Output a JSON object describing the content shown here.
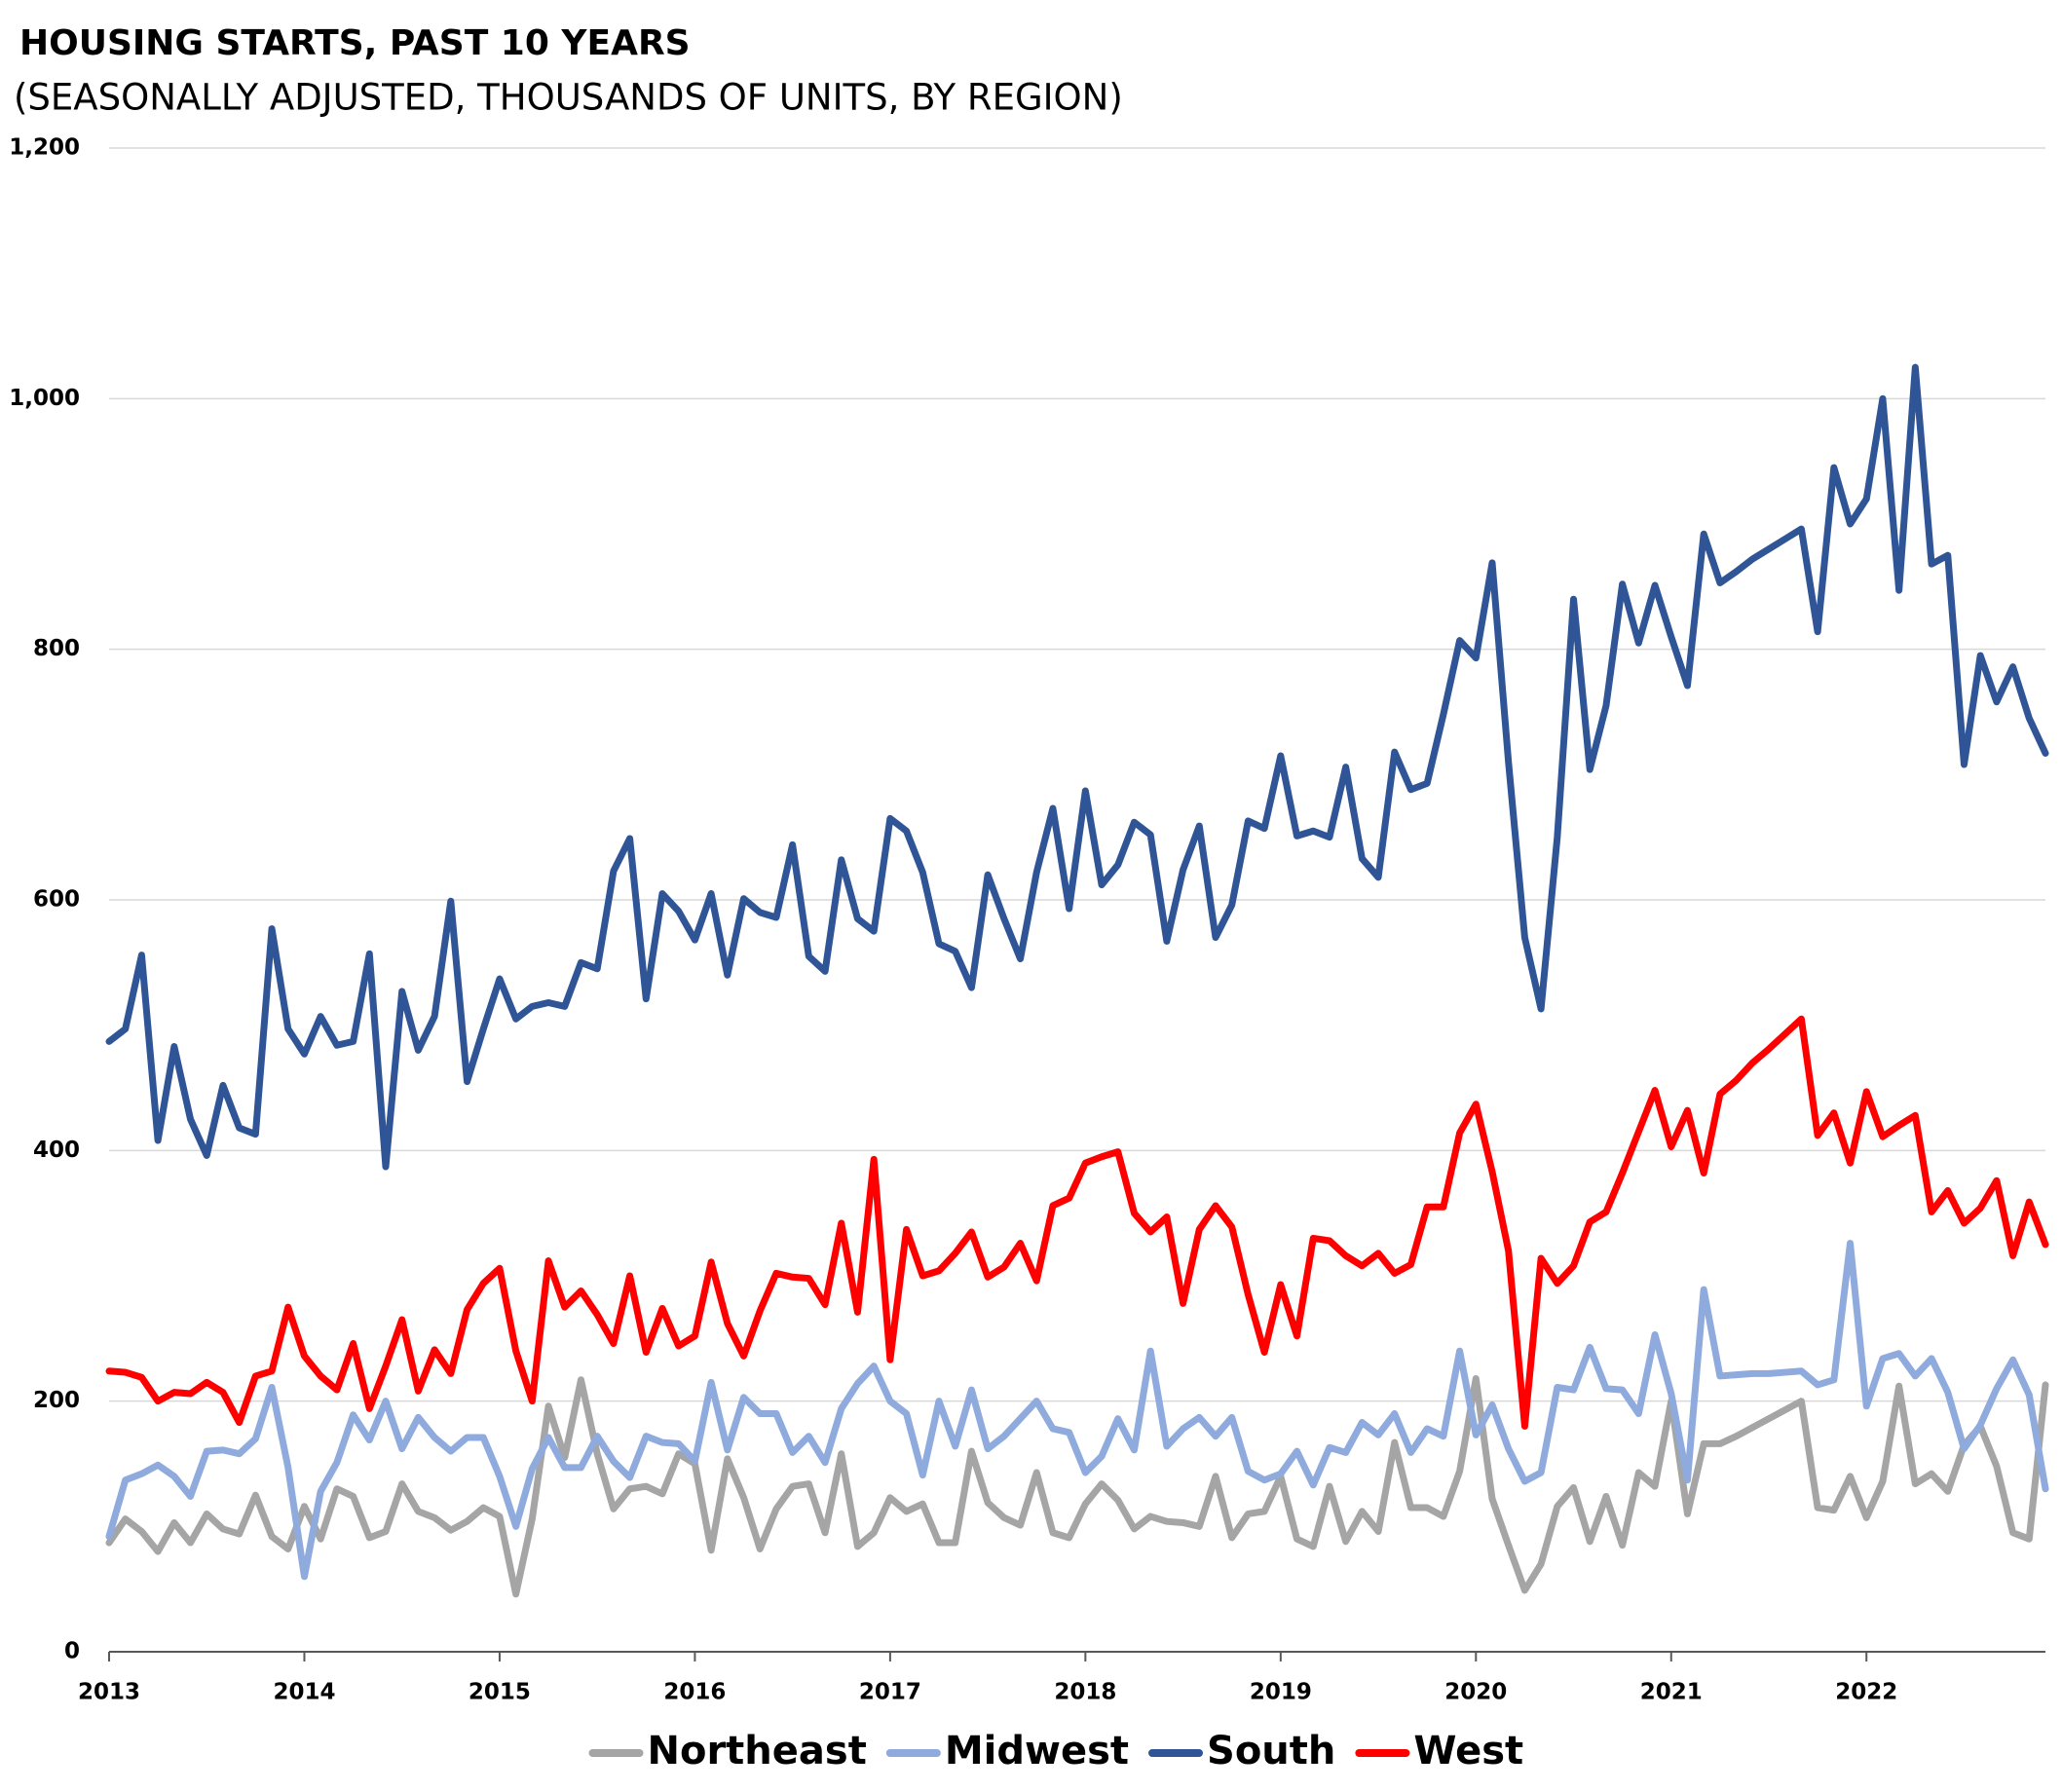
{
  "chart_data": {
    "type": "line",
    "title": "HOUSING STARTS, PAST 10 YEARS",
    "subtitle": "(SEASONALLY ADJUSTED, THOUSANDS OF UNITS, BY REGION)",
    "categories": [
      "2013",
      null,
      null,
      null,
      null,
      null,
      null,
      null,
      null,
      null,
      null,
      null,
      "2014",
      null,
      null,
      null,
      null,
      null,
      null,
      null,
      null,
      null,
      null,
      null,
      "2015",
      null,
      null,
      null,
      null,
      null,
      null,
      null,
      null,
      null,
      null,
      null,
      "2016",
      null,
      null,
      null,
      null,
      null,
      null,
      null,
      null,
      null,
      null,
      null,
      "2017",
      null,
      null,
      null,
      null,
      null,
      null,
      null,
      null,
      null,
      null,
      null,
      "2018",
      null,
      null,
      null,
      null,
      null,
      null,
      null,
      null,
      null,
      null,
      null,
      "2019",
      null,
      null,
      null,
      null,
      null,
      null,
      null,
      null,
      null,
      null,
      null,
      "2020",
      null,
      null,
      null,
      null,
      null,
      null,
      null,
      null,
      null,
      null,
      null,
      "2021",
      null,
      null,
      null,
      null,
      null,
      null,
      null,
      null,
      null,
      null,
      null,
      "2022",
      null,
      null,
      null,
      null,
      null,
      null,
      null,
      null,
      null,
      null,
      null
    ],
    "series": [
      {
        "name": "Northeast",
        "color": "#a5a5a5",
        "values": [
          87,
          106,
          96,
          80,
          103,
          87,
          110,
          98,
          94,
          125,
          92,
          82,
          116,
          90,
          130,
          124,
          91,
          96,
          134,
          112,
          107,
          97,
          104,
          115,
          108,
          46,
          106,
          196,
          155,
          217,
          158,
          114,
          130,
          132,
          126,
          158,
          150,
          81,
          154,
          123,
          82,
          114,
          132,
          134,
          95,
          158,
          84,
          95,
          123,
          112,
          118,
          87,
          87,
          160,
          119,
          107,
          101,
          143,
          95,
          91,
          118,
          134,
          121,
          98,
          108,
          104,
          103,
          100,
          140,
          91,
          110,
          112,
          140,
          90,
          84,
          132,
          88,
          112,
          96,
          167,
          115,
          115,
          108,
          144,
          218,
          122,
          85,
          49,
          70,
          116,
          131,
          88,
          124,
          85,
          143,
          132,
          200,
          110,
          166,
          166,
          172,
          179,
          186,
          193,
          200,
          115,
          113,
          140,
          107,
          136,
          212,
          134,
          142,
          128,
          165,
          180,
          148,
          95,
          90,
          213
        ]
      },
      {
        "name": "Midwest",
        "color": "#8faadc",
        "values": [
          92,
          137,
          142,
          149,
          140,
          124,
          160,
          161,
          158,
          170,
          211,
          147,
          60,
          128,
          151,
          189,
          169,
          200,
          162,
          187,
          171,
          160,
          171,
          171,
          140,
          100,
          146,
          171,
          147,
          147,
          172,
          152,
          139,
          172,
          167,
          166,
          152,
          215,
          161,
          203,
          190,
          190,
          159,
          172,
          151,
          194,
          214,
          228,
          200,
          190,
          141,
          200,
          164,
          209,
          162,
          172,
          186,
          200,
          178,
          175,
          143,
          156,
          186,
          161,
          240,
          164,
          178,
          187,
          172,
          187,
          144,
          137,
          142,
          160,
          133,
          163,
          159,
          183,
          173,
          190,
          159,
          178,
          172,
          240,
          173,
          197,
          162,
          136,
          143,
          211,
          209,
          243,
          210,
          209,
          190,
          253,
          206,
          137,
          289,
          220,
          221,
          222,
          222,
          223,
          224,
          213,
          217,
          326,
          196,
          234,
          238,
          220,
          234,
          207,
          162,
          181,
          210,
          233,
          205,
          130
        ]
      },
      {
        "name": "South",
        "color": "#2f5597",
        "values": [
          487,
          497,
          556,
          408,
          483,
          425,
          396,
          452,
          418,
          413,
          577,
          497,
          477,
          507,
          484,
          487,
          557,
          387,
          527,
          480,
          507,
          599,
          455,
          497,
          537,
          505,
          515,
          518,
          515,
          550,
          545,
          623,
          649,
          521,
          605,
          591,
          568,
          605,
          540,
          601,
          590,
          586,
          644,
          555,
          543,
          632,
          585,
          575,
          665,
          655,
          622,
          565,
          559,
          530,
          620,
          585,
          553,
          622,
          673,
          593,
          687,
          612,
          628,
          662,
          652,
          567,
          624,
          659,
          570,
          596,
          663,
          657,
          715,
          651,
          655,
          650,
          706,
          633,
          618,
          718,
          688,
          693,
          748,
          807,
          793,
          869,
          710,
          570,
          513,
          650,
          840,
          704,
          755,
          852,
          805,
          851,
          810,
          771,
          892,
          853,
          862,
          872,
          880,
          888,
          896,
          814,
          945,
          900,
          920,
          1000,
          847,
          1025,
          868,
          875,
          708,
          795,
          758,
          786,
          745,
          717
        ]
      },
      {
        "name": "West",
        "color": "#ff0000",
        "values": [
          224,
          223,
          219,
          200,
          207,
          206,
          215,
          207,
          183,
          220,
          224,
          275,
          236,
          220,
          209,
          246,
          194,
          228,
          265,
          208,
          241,
          222,
          273,
          294,
          306,
          240,
          200,
          312,
          275,
          288,
          269,
          246,
          300,
          239,
          274,
          244,
          252,
          311,
          262,
          236,
          272,
          302,
          299,
          298,
          277,
          342,
          271,
          393,
          233,
          337,
          300,
          304,
          318,
          335,
          299,
          307,
          326,
          296,
          356,
          362,
          390,
          395,
          399,
          350,
          335,
          347,
          278,
          337,
          356,
          339,
          285,
          239,
          293,
          252,
          330,
          328,
          316,
          308,
          318,
          302,
          309,
          355,
          355,
          414,
          437,
          383,
          320,
          180,
          314,
          294,
          308,
          343,
          351,
          382,
          415,
          448,
          403,
          432,
          382,
          445,
          456,
          470,
          481,
          493,
          505,
          412,
          430,
          390,
          447,
          411,
          420,
          428,
          351,
          368,
          342,
          354,
          376,
          316,
          359,
          325
        ]
      }
    ],
    "ylim": [
      0,
      1200
    ],
    "yticks": [
      0,
      200,
      400,
      600,
      800,
      {
        "value": 1000,
        "label": "1,000"
      },
      {
        "value": 1200,
        "label": "1,200"
      }
    ],
    "grid": true,
    "legend": "bottom"
  }
}
